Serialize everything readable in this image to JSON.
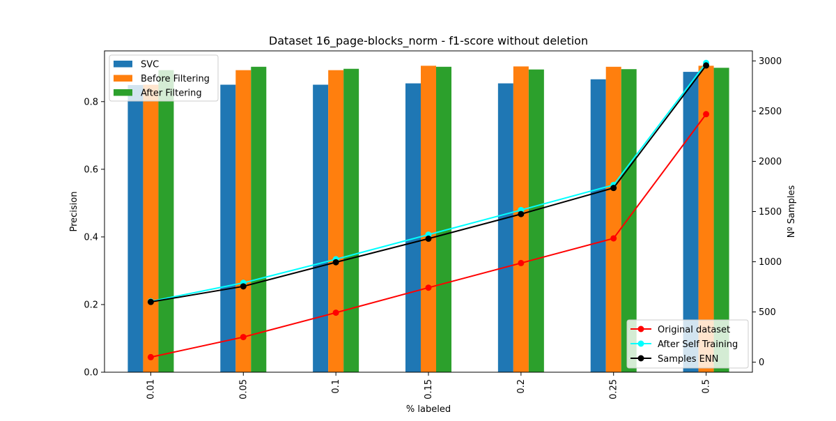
{
  "chart_data": {
    "type": "bar",
    "title": "Dataset 16_page-blocks_norm - f1-score without deletion",
    "xlabel": "% labeled",
    "ylabel": "Precision",
    "ylabel_right": "Nº Samples",
    "categories": [
      "0.01",
      "0.05",
      "0.1",
      "0.15",
      "0.2",
      "0.25",
      "0.5"
    ],
    "ylim": [
      0,
      0.95
    ],
    "ylim_right": [
      -100,
      3100
    ],
    "yticks": [
      0.0,
      0.2,
      0.4,
      0.6,
      0.8
    ],
    "yticks_right": [
      0,
      500,
      1000,
      1500,
      2000,
      2500,
      3000
    ],
    "grid": false,
    "bar_legend_position": "upper-left",
    "line_legend_position": "lower-right",
    "bar_series": [
      {
        "name": "SVC",
        "color": "#1f77b4",
        "values": [
          0.849,
          0.85,
          0.85,
          0.854,
          0.854,
          0.866,
          0.888
        ]
      },
      {
        "name": "Before Filtering",
        "color": "#ff7f0e",
        "values": [
          0.85,
          0.893,
          0.893,
          0.906,
          0.904,
          0.903,
          0.906
        ]
      },
      {
        "name": "After Filtering",
        "color": "#2ca02c",
        "values": [
          0.893,
          0.903,
          0.897,
          0.903,
          0.895,
          0.896,
          0.9
        ]
      }
    ],
    "line_series": [
      {
        "name": "Original dataset",
        "color": "#ff0000",
        "values": [
          50,
          250,
          493,
          742,
          987,
          1233,
          2470
        ]
      },
      {
        "name": "After Self Training",
        "color": "#00ffff",
        "values": [
          605,
          790,
          1025,
          1270,
          1515,
          1765,
          2980
        ]
      },
      {
        "name": "Samples ENN",
        "color": "#000000",
        "values": [
          600,
          755,
          995,
          1230,
          1475,
          1735,
          2955
        ]
      }
    ]
  }
}
